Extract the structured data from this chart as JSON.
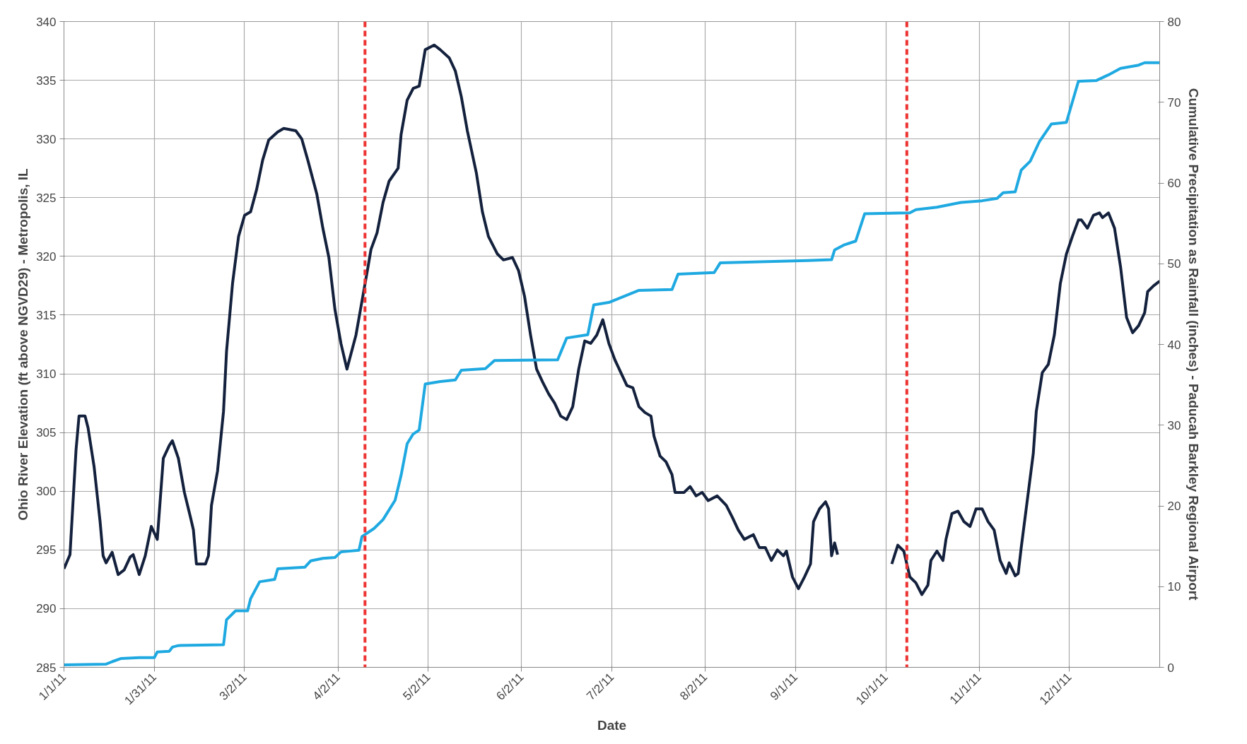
{
  "chart_data": {
    "type": "line",
    "xlabel": "Date",
    "ylabel": "Ohio River Elevation (ft above NGVD29) - Metropolis, IL",
    "y2label": "Cumulative Precipitation as Rainfall (inches) - Paducah Barkley Regional Airport",
    "xlim": [
      "2011-01-01",
      "2011-12-31"
    ],
    "xticks": [
      {
        "value": "2011-01-01",
        "label": "1/1/11"
      },
      {
        "value": "2011-01-31",
        "label": "1/31/11"
      },
      {
        "value": "2011-03-02",
        "label": "3/2/11"
      },
      {
        "value": "2011-04-02",
        "label": "4/2/11"
      },
      {
        "value": "2011-05-02",
        "label": "5/2/11"
      },
      {
        "value": "2011-06-02",
        "label": "6/2/11"
      },
      {
        "value": "2011-07-02",
        "label": "7/2/11"
      },
      {
        "value": "2011-08-02",
        "label": "8/2/11"
      },
      {
        "value": "2011-09-01",
        "label": "9/1/11"
      },
      {
        "value": "2011-10-01",
        "label": "10/1/11"
      },
      {
        "value": "2011-11-01",
        "label": "11/1/11"
      },
      {
        "value": "2011-12-01",
        "label": "12/1/11"
      }
    ],
    "ylim": [
      285,
      340
    ],
    "yticks": [
      285,
      290,
      295,
      300,
      305,
      310,
      315,
      320,
      325,
      330,
      335,
      340
    ],
    "y2lim": [
      0,
      80
    ],
    "y2ticks": [
      0,
      10,
      20,
      30,
      40,
      50,
      60,
      70,
      80
    ],
    "grid": true,
    "marker": "none",
    "line_style": "solid",
    "ref_lines": [
      {
        "axis": "x",
        "value": "2011-04-11",
        "color": "#ee3333",
        "line_style": "dashed"
      },
      {
        "axis": "x",
        "value": "2011-10-08",
        "color": "#ee3333",
        "line_style": "dashed"
      }
    ],
    "series": [
      {
        "color": "#14213d",
        "x": [
          "2011-01-01",
          "2011-01-03",
          "2011-01-05",
          "2011-01-06",
          "2011-01-08",
          "2011-01-09",
          "2011-01-11",
          "2011-01-13",
          "2011-01-14",
          "2011-01-15",
          "2011-01-17",
          "2011-01-19",
          "2011-01-21",
          "2011-01-23",
          "2011-01-24",
          "2011-01-26",
          "2011-01-28",
          "2011-01-30",
          "2011-02-01",
          "2011-02-03",
          "2011-02-05",
          "2011-02-06",
          "2011-02-08",
          "2011-02-10",
          "2011-02-12",
          "2011-02-13",
          "2011-02-14",
          "2011-02-17",
          "2011-02-18",
          "2011-02-19",
          "2011-02-21",
          "2011-02-23",
          "2011-02-24",
          "2011-02-26",
          "2011-02-28",
          "2011-03-02",
          "2011-03-04",
          "2011-03-06",
          "2011-03-08",
          "2011-03-10",
          "2011-03-13",
          "2011-03-15",
          "2011-03-19",
          "2011-03-21",
          "2011-03-23",
          "2011-03-26",
          "2011-03-28",
          "2011-03-30",
          "2011-04-01",
          "2011-04-03",
          "2011-04-05",
          "2011-04-08",
          "2011-04-10",
          "2011-04-12",
          "2011-04-13",
          "2011-04-15",
          "2011-04-17",
          "2011-04-19",
          "2011-04-22",
          "2011-04-23",
          "2011-04-25",
          "2011-04-27",
          "2011-04-29",
          "2011-05-01",
          "2011-05-04",
          "2011-05-06",
          "2011-05-09",
          "2011-05-11",
          "2011-05-13",
          "2011-05-15",
          "2011-05-18",
          "2011-05-20",
          "2011-05-22",
          "2011-05-25",
          "2011-05-27",
          "2011-05-30",
          "2011-06-01",
          "2011-06-03",
          "2011-06-05",
          "2011-06-07",
          "2011-06-09",
          "2011-06-11",
          "2011-06-13",
          "2011-06-15",
          "2011-06-17",
          "2011-06-19",
          "2011-06-21",
          "2011-06-23",
          "2011-06-25",
          "2011-06-27",
          "2011-06-29",
          "2011-07-01",
          "2011-07-03",
          "2011-07-05",
          "2011-07-07",
          "2011-07-09",
          "2011-07-11",
          "2011-07-13",
          "2011-07-15",
          "2011-07-16",
          "2011-07-18",
          "2011-07-20",
          "2011-07-22",
          "2011-07-23",
          "2011-07-26",
          "2011-07-28",
          "2011-07-30",
          "2011-08-01",
          "2011-08-03",
          "2011-08-06",
          "2011-08-09",
          "2011-08-11",
          "2011-08-13",
          "2011-08-15",
          "2011-08-18",
          "2011-08-20",
          "2011-08-22",
          "2011-08-24",
          "2011-08-26",
          "2011-08-28",
          "2011-08-29",
          "2011-08-31",
          "2011-09-02",
          "2011-09-04",
          "2011-09-06",
          "2011-09-07",
          "2011-09-09",
          "2011-09-11",
          "2011-09-12",
          "2011-09-13",
          "2011-09-14",
          "2011-09-15",
          "2011-09-24",
          "2011-10-03",
          "2011-10-05",
          "2011-10-07",
          "2011-10-09",
          "2011-10-11",
          "2011-10-13",
          "2011-10-15",
          "2011-10-16",
          "2011-10-18",
          "2011-10-20",
          "2011-10-21",
          "2011-10-23",
          "2011-10-25",
          "2011-10-27",
          "2011-10-29",
          "2011-10-31",
          "2011-11-02",
          "2011-11-04",
          "2011-11-06",
          "2011-11-08",
          "2011-11-10",
          "2011-11-11",
          "2011-11-13",
          "2011-11-14",
          "2011-11-15",
          "2011-11-17",
          "2011-11-19",
          "2011-11-20",
          "2011-11-22",
          "2011-11-24",
          "2011-11-26",
          "2011-11-28",
          "2011-11-30",
          "2011-12-02",
          "2011-12-04",
          "2011-12-05",
          "2011-12-07",
          "2011-12-09",
          "2011-12-11",
          "2011-12-12",
          "2011-12-14",
          "2011-12-16",
          "2011-12-18",
          "2011-12-20",
          "2011-12-22",
          "2011-12-24",
          "2011-12-26",
          "2011-12-27",
          "2011-12-29",
          "2011-12-31"
        ],
        "values": [
          293.4,
          294.6,
          303.5,
          306.4,
          306.4,
          305.4,
          302.1,
          297.4,
          294.5,
          293.9,
          294.8,
          292.9,
          293.3,
          294.4,
          294.6,
          292.9,
          294.5,
          297.0,
          295.9,
          302.8,
          303.9,
          304.3,
          302.8,
          299.9,
          297.8,
          296.7,
          293.8,
          293.8,
          294.5,
          298.8,
          301.7,
          306.8,
          311.9,
          317.7,
          321.7,
          323.5,
          323.8,
          325.7,
          328.2,
          329.9,
          330.6,
          330.9,
          330.7,
          330.0,
          328.2,
          325.3,
          322.4,
          319.9,
          315.5,
          312.6,
          310.4,
          313.3,
          316.2,
          319.1,
          320.6,
          322.0,
          324.6,
          326.4,
          327.5,
          330.4,
          333.3,
          334.3,
          334.5,
          337.6,
          338.0,
          337.6,
          336.9,
          335.8,
          333.6,
          330.7,
          327.1,
          323.8,
          321.7,
          320.2,
          319.7,
          319.9,
          318.8,
          316.6,
          313.3,
          310.4,
          309.3,
          308.3,
          307.5,
          306.4,
          306.1,
          307.2,
          310.4,
          312.8,
          312.6,
          313.3,
          314.6,
          312.6,
          311.2,
          310.1,
          309.0,
          308.8,
          307.2,
          306.7,
          306.4,
          304.7,
          303.0,
          302.5,
          301.4,
          299.9,
          299.9,
          300.4,
          299.6,
          299.9,
          299.2,
          299.6,
          298.8,
          297.8,
          296.7,
          295.9,
          296.3,
          295.2,
          295.2,
          294.1,
          295.0,
          294.5,
          294.9,
          292.7,
          291.7,
          292.7,
          293.8,
          297.4,
          298.5,
          299.1,
          298.5,
          294.5,
          295.6,
          294.6,
          null,
          293.8,
          295.4,
          294.9,
          292.7,
          292.2,
          291.2,
          292.0,
          294.1,
          294.9,
          294.1,
          295.9,
          298.1,
          298.3,
          297.4,
          297.0,
          298.5,
          298.5,
          297.4,
          296.7,
          294.1,
          293.0,
          293.9,
          292.8,
          293.0,
          295.2,
          299.2,
          303.2,
          306.8,
          310.1,
          310.8,
          313.3,
          317.7,
          320.2,
          321.7,
          323.1,
          323.1,
          322.4,
          323.5,
          323.7,
          323.3,
          323.7,
          322.4,
          319.1,
          314.8,
          313.5,
          314.1,
          315.2,
          317.0,
          317.5,
          317.9
        ]
      },
      {
        "color": "#1fa9e1",
        "axis": "y2",
        "x": [
          "2011-01-01",
          "2011-01-15",
          "2011-01-17",
          "2011-01-20",
          "2011-01-26",
          "2011-01-31",
          "2011-02-01",
          "2011-02-05",
          "2011-02-06",
          "2011-02-08",
          "2011-02-23",
          "2011-02-24",
          "2011-02-27",
          "2011-03-03",
          "2011-03-04",
          "2011-03-07",
          "2011-03-12",
          "2011-03-13",
          "2011-03-22",
          "2011-03-24",
          "2011-03-28",
          "2011-04-01",
          "2011-04-03",
          "2011-04-09",
          "2011-04-10",
          "2011-04-14",
          "2011-04-17",
          "2011-04-21",
          "2011-04-23",
          "2011-04-25",
          "2011-04-27",
          "2011-04-29",
          "2011-05-01",
          "2011-05-06",
          "2011-05-11",
          "2011-05-13",
          "2011-05-21",
          "2011-05-24",
          "2011-06-14",
          "2011-06-17",
          "2011-06-24",
          "2011-06-26",
          "2011-07-01",
          "2011-07-11",
          "2011-07-22",
          "2011-07-24",
          "2011-08-05",
          "2011-08-07",
          "2011-09-05",
          "2011-09-13",
          "2011-09-14",
          "2011-09-17",
          "2011-09-21",
          "2011-09-24",
          "2011-10-09",
          "2011-10-11",
          "2011-10-18",
          "2011-10-26",
          "2011-11-02",
          "2011-11-07",
          "2011-11-09",
          "2011-11-13",
          "2011-11-15",
          "2011-11-18",
          "2011-11-21",
          "2011-11-25",
          "2011-11-30",
          "2011-12-04",
          "2011-12-10",
          "2011-12-14",
          "2011-12-18",
          "2011-12-24",
          "2011-12-26",
          "2011-12-31"
        ],
        "values": [
          0.3,
          0.4,
          0.7,
          1.1,
          1.2,
          1.2,
          1.9,
          2.0,
          2.5,
          2.7,
          2.8,
          5.9,
          7.0,
          7.0,
          8.5,
          10.6,
          10.9,
          12.2,
          12.4,
          13.2,
          13.5,
          13.6,
          14.3,
          14.5,
          16.2,
          17.2,
          18.3,
          20.7,
          23.8,
          27.7,
          28.9,
          29.4,
          35.1,
          35.4,
          35.6,
          36.8,
          37.0,
          38.0,
          38.1,
          40.8,
          41.2,
          44.9,
          45.2,
          46.7,
          46.8,
          48.7,
          48.9,
          50.1,
          50.4,
          50.5,
          51.7,
          52.3,
          52.8,
          56.2,
          56.3,
          56.7,
          57.0,
          57.6,
          57.8,
          58.1,
          58.8,
          58.9,
          61.6,
          62.7,
          65.1,
          67.3,
          67.5,
          72.6,
          72.7,
          73.4,
          74.2,
          74.6,
          74.9,
          74.9
        ]
      }
    ]
  }
}
